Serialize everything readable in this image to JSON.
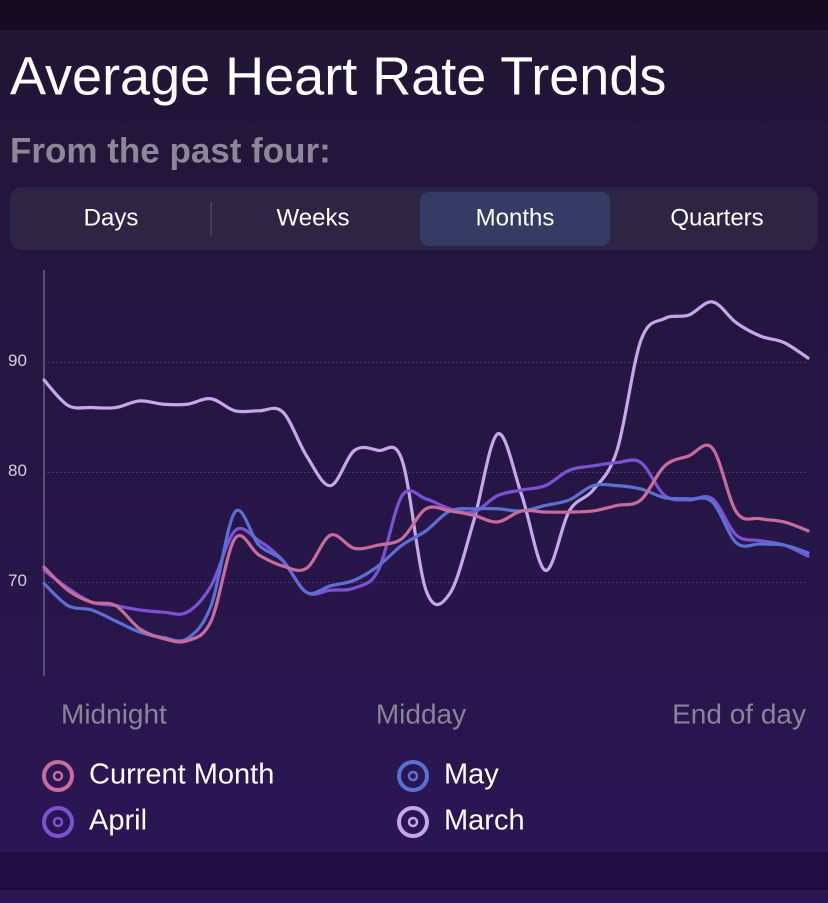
{
  "title": "Average Heart Rate Trends",
  "subtitle": "From the past four:",
  "tabs": [
    "Days",
    "Weeks",
    "Months",
    "Quarters"
  ],
  "selected_tab": 2,
  "chart_data": {
    "type": "line",
    "xlabels": [
      "Midnight",
      "Midday",
      "End of day"
    ],
    "ylim": [
      61.5,
      98.4
    ],
    "yticks": [
      70,
      80,
      90
    ],
    "grid": true,
    "series": [
      {
        "name": "Current Month",
        "color": "#c86c9c",
        "values": [
          71.4,
          69.3,
          68.2,
          67.9,
          65.8,
          64.9,
          64.7,
          66.5,
          74.0,
          72.5,
          71.5,
          71.3,
          74.3,
          73.1,
          73.4,
          74.0,
          76.7,
          76.5,
          76.1,
          75.5,
          76.5,
          76.4,
          76.4,
          76.5,
          77.0,
          77.5,
          80.6,
          81.5,
          82.2,
          76.4,
          75.8,
          75.5,
          74.7
        ]
      },
      {
        "name": "May",
        "color": "#5a70d2",
        "values": [
          69.9,
          67.9,
          67.5,
          66.5,
          65.5,
          65.0,
          64.9,
          67.9,
          76.4,
          73.4,
          72.0,
          69.1,
          69.7,
          70.2,
          71.5,
          73.4,
          74.7,
          76.5,
          76.7,
          76.7,
          76.5,
          77.0,
          77.5,
          78.8,
          78.8,
          78.5,
          77.7,
          77.6,
          77.3,
          73.6,
          73.5,
          73.4,
          72.7
        ]
      },
      {
        "name": "April",
        "color": "#7c52d2",
        "values": [
          71.1,
          69.5,
          68.2,
          67.9,
          67.5,
          67.3,
          67.3,
          69.7,
          74.7,
          73.8,
          72.0,
          69.1,
          69.3,
          69.5,
          71.1,
          77.9,
          77.6,
          76.7,
          76.4,
          77.9,
          78.4,
          78.8,
          80.2,
          80.6,
          80.9,
          80.9,
          77.9,
          77.5,
          77.6,
          74.3,
          73.8,
          73.4,
          72.4
        ]
      },
      {
        "name": "March",
        "color": "#c6a8ea",
        "values": [
          88.4,
          86.1,
          85.9,
          85.9,
          86.5,
          86.2,
          86.2,
          86.7,
          85.6,
          85.6,
          85.5,
          81.5,
          78.8,
          82.0,
          82.0,
          81.1,
          69.3,
          69.0,
          75.6,
          83.5,
          78.0,
          71.1,
          76.5,
          78.4,
          82.0,
          92.0,
          94.0,
          94.3,
          95.5,
          93.6,
          92.4,
          91.8,
          90.4
        ]
      }
    ]
  }
}
